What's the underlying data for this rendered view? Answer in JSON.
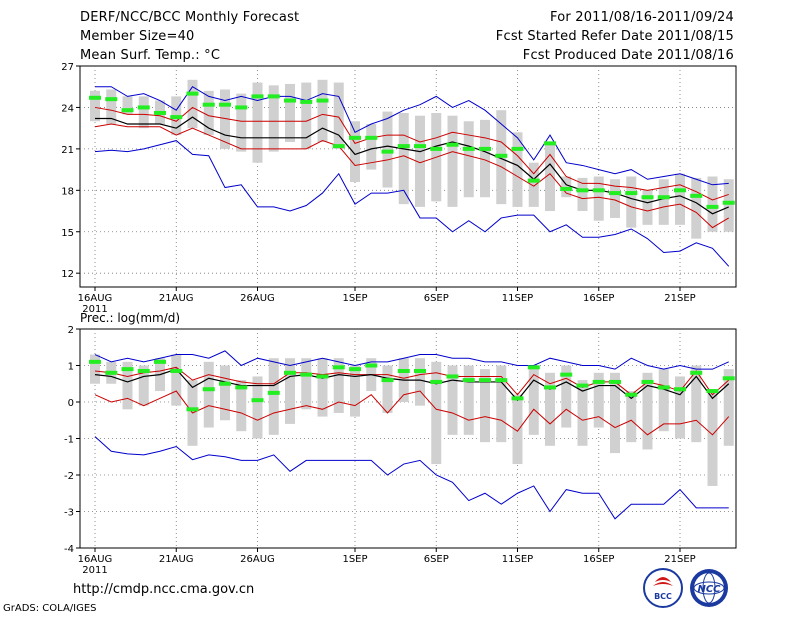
{
  "header": {
    "title": "DERF/NCC/BCC Monthly Forecast",
    "member_size": "Member Size=40",
    "variable1": "Mean Surf. Temp.: °C",
    "forecast_period": "For 2011/08/16-2011/09/24",
    "started_date": "Fcst Started Refer Date 2011/08/15",
    "produced_date": "Fcst Produced Date 2011/08/16"
  },
  "footer": {
    "url": "http://cmdp.ncc.cma.gov.cn",
    "credit": "GrADS: COLA/IGES",
    "logo1_text": "BCC",
    "logo2_text": "NCC"
  },
  "colors": {
    "max_min": "#0000cc",
    "spread": "#cc0000",
    "mean": "#000000",
    "median": "#22ee22",
    "box": "#d0d0d0",
    "grid": "#777777"
  },
  "chart_data": [
    {
      "type": "box-plume",
      "title": "Mean Surf. Temp.: °C",
      "x_ticks": [
        "16AUG\n2011",
        "21AUG",
        "26AUG",
        "1SEP",
        "6SEP",
        "11SEP",
        "16SEP",
        "21SEP"
      ],
      "x_tick_days": [
        0,
        5,
        10,
        16,
        21,
        26,
        31,
        36
      ],
      "ylim": [
        11,
        27
      ],
      "yticks": [
        12,
        15,
        18,
        21,
        24,
        27
      ],
      "ytick_labels": [
        "12",
        "15",
        "18",
        "21",
        "24",
        "27"
      ],
      "days": [
        0,
        1,
        2,
        3,
        4,
        5,
        6,
        7,
        8,
        9,
        10,
        11,
        12,
        13,
        14,
        15,
        16,
        17,
        18,
        19,
        20,
        21,
        22,
        23,
        24,
        25,
        26,
        27,
        28,
        29,
        30,
        31,
        32,
        33,
        34,
        35,
        36,
        37,
        38,
        39
      ],
      "series": [
        {
          "name": "max",
          "values": [
            25.5,
            25.5,
            24.8,
            25.0,
            24.5,
            23.8,
            25.5,
            24.8,
            24.5,
            24.8,
            24.5,
            24.8,
            24.8,
            24.5,
            25.0,
            24.8,
            22.2,
            22.8,
            23.2,
            23.8,
            24.2,
            24.8,
            24.0,
            24.5,
            23.8,
            22.8,
            21.8,
            20.2,
            22.0,
            20.0,
            19.8,
            19.5,
            19.2,
            19.5,
            18.8,
            19.0,
            19.2,
            18.8,
            18.4,
            18.5
          ]
        },
        {
          "name": "spread_high",
          "values": [
            24.0,
            23.8,
            23.5,
            23.5,
            23.4,
            23.0,
            24.0,
            23.4,
            23.2,
            23.0,
            23.0,
            23.0,
            23.0,
            23.0,
            23.5,
            23.3,
            21.4,
            21.8,
            22.0,
            22.0,
            21.5,
            21.8,
            22.2,
            22.0,
            21.8,
            21.5,
            20.5,
            19.2,
            20.6,
            19.0,
            18.5,
            18.5,
            18.3,
            18.2,
            18.0,
            18.2,
            18.4,
            17.9,
            17.3,
            17.7
          ]
        },
        {
          "name": "mean",
          "values": [
            23.2,
            23.2,
            22.8,
            22.8,
            22.8,
            22.5,
            23.3,
            22.5,
            22.0,
            21.8,
            21.8,
            21.8,
            21.8,
            21.8,
            22.5,
            22.0,
            20.6,
            21.0,
            21.2,
            21.0,
            20.8,
            21.2,
            21.5,
            21.2,
            20.8,
            20.3,
            19.8,
            18.8,
            19.9,
            18.4,
            18.0,
            18.0,
            17.8,
            17.4,
            17.1,
            17.4,
            17.6,
            17.1,
            16.3,
            16.8
          ]
        },
        {
          "name": "spread_low",
          "values": [
            22.6,
            22.8,
            22.6,
            22.6,
            22.6,
            22.0,
            22.5,
            22.0,
            21.5,
            21.0,
            21.0,
            21.0,
            21.0,
            21.0,
            21.6,
            21.2,
            19.8,
            20.0,
            20.2,
            20.5,
            20.0,
            20.4,
            20.8,
            20.5,
            20.2,
            19.7,
            19.0,
            18.3,
            19.2,
            17.8,
            17.4,
            17.5,
            17.3,
            16.8,
            16.5,
            16.8,
            17.0,
            16.4,
            15.3,
            16.0
          ]
        },
        {
          "name": "min",
          "values": [
            20.8,
            20.9,
            20.8,
            21.0,
            21.3,
            21.6,
            20.6,
            20.5,
            18.2,
            18.4,
            16.8,
            16.8,
            16.5,
            16.9,
            17.8,
            19.2,
            17.0,
            17.8,
            17.8,
            18.0,
            16.0,
            16.0,
            15.0,
            15.8,
            15.0,
            16.0,
            16.2,
            16.2,
            15.0,
            15.5,
            14.6,
            14.6,
            14.8,
            15.2,
            14.5,
            13.5,
            13.6,
            14.2,
            13.8,
            12.5
          ]
        }
      ],
      "box_range": [
        [
          23.0,
          25.2
        ],
        [
          22.8,
          25.3
        ],
        [
          23.5,
          24.8
        ],
        [
          22.5,
          24.8
        ],
        [
          22.8,
          24.5
        ],
        [
          22.0,
          24.8
        ],
        [
          22.5,
          26.0
        ],
        [
          22.0,
          25.2
        ],
        [
          21.0,
          25.3
        ],
        [
          20.8,
          25.0
        ],
        [
          20.0,
          25.8
        ],
        [
          20.8,
          25.6
        ],
        [
          21.5,
          25.7
        ],
        [
          21.0,
          25.8
        ],
        [
          21.5,
          26.0
        ],
        [
          21.0,
          25.8
        ],
        [
          18.6,
          23.0
        ],
        [
          19.5,
          22.8
        ],
        [
          18.2,
          23.7
        ],
        [
          17.0,
          23.6
        ],
        [
          16.8,
          23.4
        ],
        [
          17.2,
          23.6
        ],
        [
          16.8,
          23.4
        ],
        [
          17.5,
          23.0
        ],
        [
          17.5,
          23.1
        ],
        [
          17.0,
          23.8
        ],
        [
          16.8,
          22.2
        ],
        [
          16.8,
          20.0
        ],
        [
          16.5,
          21.5
        ],
        [
          17.5,
          19.0
        ],
        [
          16.5,
          18.9
        ],
        [
          15.8,
          19.0
        ],
        [
          16.0,
          18.8
        ],
        [
          15.3,
          19.0
        ],
        [
          15.5,
          18.0
        ],
        [
          15.5,
          18.8
        ],
        [
          15.5,
          19.2
        ],
        [
          14.5,
          18.9
        ],
        [
          15.0,
          19.0
        ],
        [
          15.0,
          18.8
        ]
      ],
      "median_marks": [
        24.7,
        24.6,
        23.8,
        24.0,
        23.6,
        23.3,
        25.0,
        24.2,
        24.2,
        24.0,
        24.8,
        24.8,
        24.5,
        24.4,
        24.5,
        21.2,
        21.8,
        21.8,
        20.8,
        21.2,
        21.2,
        21.0,
        21.3,
        21.0,
        21.0,
        20.5,
        21.0,
        18.7,
        21.4,
        18.1,
        18.0,
        18.0,
        17.8,
        17.8,
        17.5,
        17.5,
        18.0,
        17.6,
        16.8,
        17.1
      ]
    },
    {
      "type": "box-plume",
      "title": "Prec.: log(mm/d)",
      "x_ticks": [
        "16AUG\n2011",
        "21AUG",
        "26AUG",
        "1SEP",
        "6SEP",
        "11SEP",
        "16SEP",
        "21SEP"
      ],
      "x_tick_days": [
        0,
        5,
        10,
        16,
        21,
        26,
        31,
        36
      ],
      "ylim": [
        -4,
        2
      ],
      "yticks": [
        -4,
        -3,
        -2,
        -1,
        0,
        1,
        2
      ],
      "ytick_labels": [
        "-4",
        "-3",
        "-2",
        "-1",
        "0",
        "1",
        "2"
      ],
      "days": [
        0,
        1,
        2,
        3,
        4,
        5,
        6,
        7,
        8,
        9,
        10,
        11,
        12,
        13,
        14,
        15,
        16,
        17,
        18,
        19,
        20,
        21,
        22,
        23,
        24,
        25,
        26,
        27,
        28,
        29,
        30,
        31,
        32,
        33,
        34,
        35,
        36,
        37,
        38,
        39
      ],
      "series": [
        {
          "name": "max",
          "values": [
            1.3,
            1.1,
            1.2,
            1.1,
            1.2,
            1.3,
            1.3,
            1.2,
            1.4,
            1.0,
            1.2,
            1.1,
            1.0,
            1.1,
            1.2,
            1.1,
            1.0,
            1.1,
            1.1,
            1.2,
            1.3,
            1.3,
            1.2,
            1.2,
            1.1,
            1.1,
            1.0,
            1.0,
            1.2,
            1.1,
            1.0,
            1.0,
            0.9,
            1.2,
            1.0,
            0.9,
            1.0,
            0.9,
            0.9,
            1.1
          ]
        },
        {
          "name": "spread_high",
          "values": [
            0.85,
            0.8,
            0.7,
            0.8,
            0.85,
            0.95,
            0.6,
            0.75,
            0.65,
            0.55,
            0.5,
            0.5,
            0.8,
            0.8,
            0.75,
            0.8,
            0.75,
            0.75,
            0.75,
            0.65,
            0.75,
            0.8,
            0.7,
            0.7,
            0.7,
            0.7,
            0.2,
            0.75,
            0.5,
            0.65,
            0.4,
            0.55,
            0.55,
            0.2,
            0.55,
            0.45,
            0.3,
            0.85,
            0.2,
            0.6
          ]
        },
        {
          "name": "mean",
          "values": [
            0.75,
            0.7,
            0.55,
            0.7,
            0.75,
            0.9,
            0.4,
            0.65,
            0.55,
            0.45,
            0.45,
            0.45,
            0.7,
            0.75,
            0.65,
            0.75,
            0.7,
            0.75,
            0.65,
            0.6,
            0.6,
            0.5,
            0.6,
            0.55,
            0.55,
            0.55,
            0.05,
            0.6,
            0.35,
            0.55,
            0.3,
            0.45,
            0.45,
            0.1,
            0.45,
            0.35,
            0.2,
            0.7,
            0.1,
            0.5
          ]
        },
        {
          "name": "spread_low",
          "values": [
            0.2,
            0.0,
            0.1,
            -0.1,
            0.1,
            0.3,
            -0.3,
            -0.1,
            -0.2,
            -0.3,
            -0.5,
            -0.3,
            -0.2,
            -0.1,
            -0.2,
            0.0,
            -0.1,
            0.2,
            -0.3,
            0.2,
            0.3,
            -0.2,
            -0.3,
            -0.5,
            -0.4,
            -0.5,
            -0.8,
            -0.2,
            -0.6,
            -0.2,
            -0.5,
            -0.4,
            -0.7,
            -0.5,
            -0.9,
            -0.6,
            -0.6,
            -0.5,
            -0.9,
            -0.4
          ]
        },
        {
          "name": "min",
          "values": [
            -0.95,
            -1.35,
            -1.42,
            -1.45,
            -1.35,
            -1.22,
            -1.58,
            -1.45,
            -1.5,
            -1.6,
            -1.6,
            -1.45,
            -1.9,
            -1.6,
            -1.6,
            -1.6,
            -1.6,
            -1.6,
            -2.0,
            -1.7,
            -1.6,
            -2.0,
            -2.2,
            -2.7,
            -2.5,
            -2.8,
            -2.5,
            -2.3,
            -3.0,
            -2.4,
            -2.5,
            -2.5,
            -3.2,
            -2.8,
            -2.8,
            -2.8,
            -2.4,
            -2.9,
            -2.9,
            -2.9
          ]
        }
      ],
      "box_range": [
        [
          0.5,
          1.3
        ],
        [
          0.5,
          1.1
        ],
        [
          -0.2,
          1.1
        ],
        [
          -0.1,
          1.0
        ],
        [
          0.3,
          1.2
        ],
        [
          -0.1,
          1.3
        ],
        [
          -1.2,
          0.6
        ],
        [
          -0.7,
          1.1
        ],
        [
          -0.5,
          1.0
        ],
        [
          -0.8,
          0.6
        ],
        [
          -1.0,
          0.7
        ],
        [
          -0.9,
          1.2
        ],
        [
          -0.6,
          1.2
        ],
        [
          -0.2,
          1.2
        ],
        [
          -0.4,
          1.2
        ],
        [
          -0.3,
          1.2
        ],
        [
          -0.4,
          1.0
        ],
        [
          0.3,
          1.2
        ],
        [
          -0.3,
          1.0
        ],
        [
          0.0,
          1.2
        ],
        [
          -0.1,
          1.2
        ],
        [
          -1.7,
          1.1
        ],
        [
          -0.9,
          1.0
        ],
        [
          -0.9,
          1.0
        ],
        [
          -1.1,
          0.9
        ],
        [
          -1.1,
          1.0
        ],
        [
          -1.7,
          0.2
        ],
        [
          -0.9,
          1.0
        ],
        [
          -1.2,
          0.8
        ],
        [
          -0.7,
          1.0
        ],
        [
          -1.2,
          0.6
        ],
        [
          -0.7,
          0.8
        ],
        [
          -1.4,
          0.8
        ],
        [
          -1.1,
          0.3
        ],
        [
          -1.3,
          0.8
        ],
        [
          -0.8,
          0.9
        ],
        [
          -1.0,
          0.7
        ],
        [
          -1.1,
          1.0
        ],
        [
          -2.3,
          0.3
        ],
        [
          -1.2,
          0.9
        ]
      ],
      "median_marks": [
        1.1,
        0.8,
        0.9,
        0.85,
        1.1,
        0.85,
        -0.2,
        0.35,
        0.5,
        0.4,
        0.05,
        0.25,
        0.8,
        0.75,
        0.7,
        0.95,
        0.9,
        1.0,
        0.6,
        0.85,
        0.85,
        0.55,
        0.7,
        0.6,
        0.6,
        0.6,
        0.1,
        0.95,
        0.4,
        0.75,
        0.45,
        0.55,
        0.55,
        0.2,
        0.55,
        0.4,
        0.35,
        0.8,
        0.3,
        0.65
      ]
    }
  ]
}
